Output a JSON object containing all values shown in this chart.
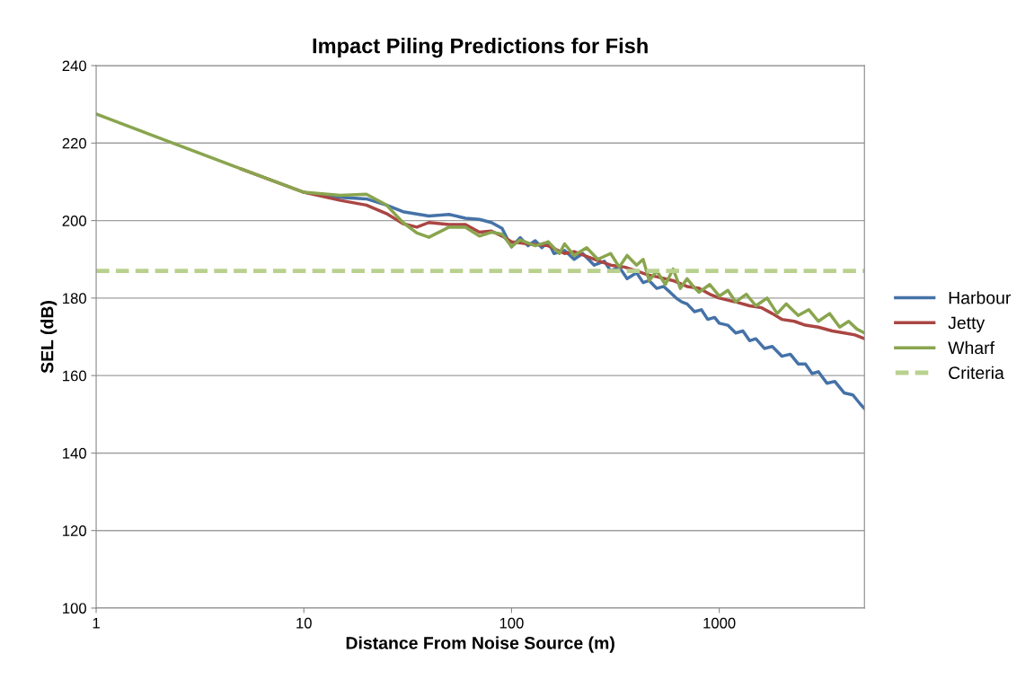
{
  "chart_data": {
    "type": "line",
    "title": "Impact Piling Predictions for Fish",
    "xlabel": "Distance From Noise Source (m)",
    "ylabel": "SEL (dB)",
    "log": "x",
    "xlim": [
      1,
      5000
    ],
    "xticks": [
      1,
      10,
      100,
      1000
    ],
    "ylim": [
      100,
      240
    ],
    "yticks": [
      100,
      120,
      140,
      160,
      180,
      200,
      220,
      240
    ],
    "grid": "y",
    "legend": "right",
    "marker": "none",
    "line_style": "solid",
    "series": [
      {
        "name": "Harbour",
        "color": "#4572a7",
        "x": [
          10,
          15,
          20,
          25,
          30,
          40,
          50,
          60,
          70,
          80,
          90,
          95,
          100,
          110,
          120,
          130,
          140,
          150,
          160,
          180,
          200,
          220,
          250,
          280,
          300,
          330,
          360,
          400,
          430,
          460,
          500,
          540,
          580,
          620,
          660,
          700,
          760,
          820,
          880,
          950,
          1000,
          1100,
          1200,
          1300,
          1400,
          1500,
          1650,
          1800,
          2000,
          2200,
          2400,
          2600,
          2800,
          3000,
          3300,
          3600,
          4000,
          4400,
          4800,
          5000
        ],
        "values": [
          207.3,
          206,
          205.6,
          204,
          202.3,
          201.2,
          201.6,
          200.6,
          200.3,
          199.5,
          198,
          195.5,
          193.2,
          195.6,
          193.5,
          194.8,
          193,
          194.5,
          191.5,
          192.3,
          190,
          191.5,
          188.5,
          189.5,
          187,
          188,
          185,
          186.5,
          184,
          184.5,
          182.5,
          183,
          181.5,
          180,
          179,
          178.5,
          176.5,
          177,
          174.5,
          175,
          173.5,
          173,
          171,
          171.5,
          169,
          169.5,
          167,
          167.5,
          165,
          165.5,
          163,
          163,
          160.5,
          161,
          158,
          158.5,
          155.5,
          155,
          152.5,
          151.5
        ]
      },
      {
        "name": "Jetty",
        "color": "#aa4643",
        "x": [
          5,
          10,
          15,
          20,
          25,
          30,
          35,
          40,
          50,
          60,
          70,
          80,
          90,
          100,
          120,
          150,
          180,
          200,
          250,
          300,
          350,
          400,
          450,
          500,
          600,
          700,
          800,
          900,
          1000,
          1200,
          1400,
          1600,
          1800,
          2000,
          2300,
          2600,
          3000,
          3500,
          4000,
          4500,
          5000
        ],
        "values": [
          213.3,
          207.3,
          205.2,
          204,
          201.8,
          199.2,
          198.3,
          199.5,
          199,
          199,
          197,
          197.3,
          196,
          194.5,
          194,
          193.5,
          191.5,
          192,
          190,
          188.5,
          188,
          187,
          186,
          185.5,
          184.5,
          183,
          182.5,
          181,
          180,
          179,
          178,
          177.5,
          176,
          174.5,
          174,
          173,
          172.5,
          171.5,
          171,
          170.5,
          169.5
        ]
      },
      {
        "name": "Wharf",
        "color": "#89a54e",
        "x": [
          1,
          2,
          5,
          10,
          15,
          20,
          25,
          30,
          35,
          40,
          50,
          60,
          70,
          80,
          90,
          100,
          110,
          130,
          150,
          170,
          180,
          200,
          230,
          260,
          300,
          330,
          360,
          400,
          430,
          460,
          500,
          550,
          600,
          650,
          700,
          750,
          800,
          900,
          1000,
          1100,
          1200,
          1350,
          1500,
          1700,
          1900,
          2100,
          2400,
          2700,
          3000,
          3400,
          3800,
          4200,
          4600,
          5000
        ],
        "values": [
          227.5,
          221.4,
          213.3,
          207.3,
          206.5,
          206.8,
          204,
          199.5,
          196.8,
          195.7,
          198.3,
          198.3,
          196,
          197,
          196.5,
          193.3,
          195,
          193.5,
          194.5,
          191.5,
          194,
          191,
          193,
          190,
          191.5,
          188,
          191,
          188.5,
          190,
          184.5,
          187,
          183.5,
          187.5,
          182.5,
          185,
          183,
          181.5,
          183.5,
          180.5,
          182,
          179,
          181,
          178,
          180,
          176,
          178.5,
          175.5,
          177,
          174,
          176,
          172.5,
          174,
          172,
          171
        ]
      },
      {
        "name": "Criteria",
        "color": "#b9d18e",
        "line_style": "dashed",
        "x": [
          1,
          5000
        ],
        "values": [
          187,
          187
        ]
      }
    ]
  }
}
